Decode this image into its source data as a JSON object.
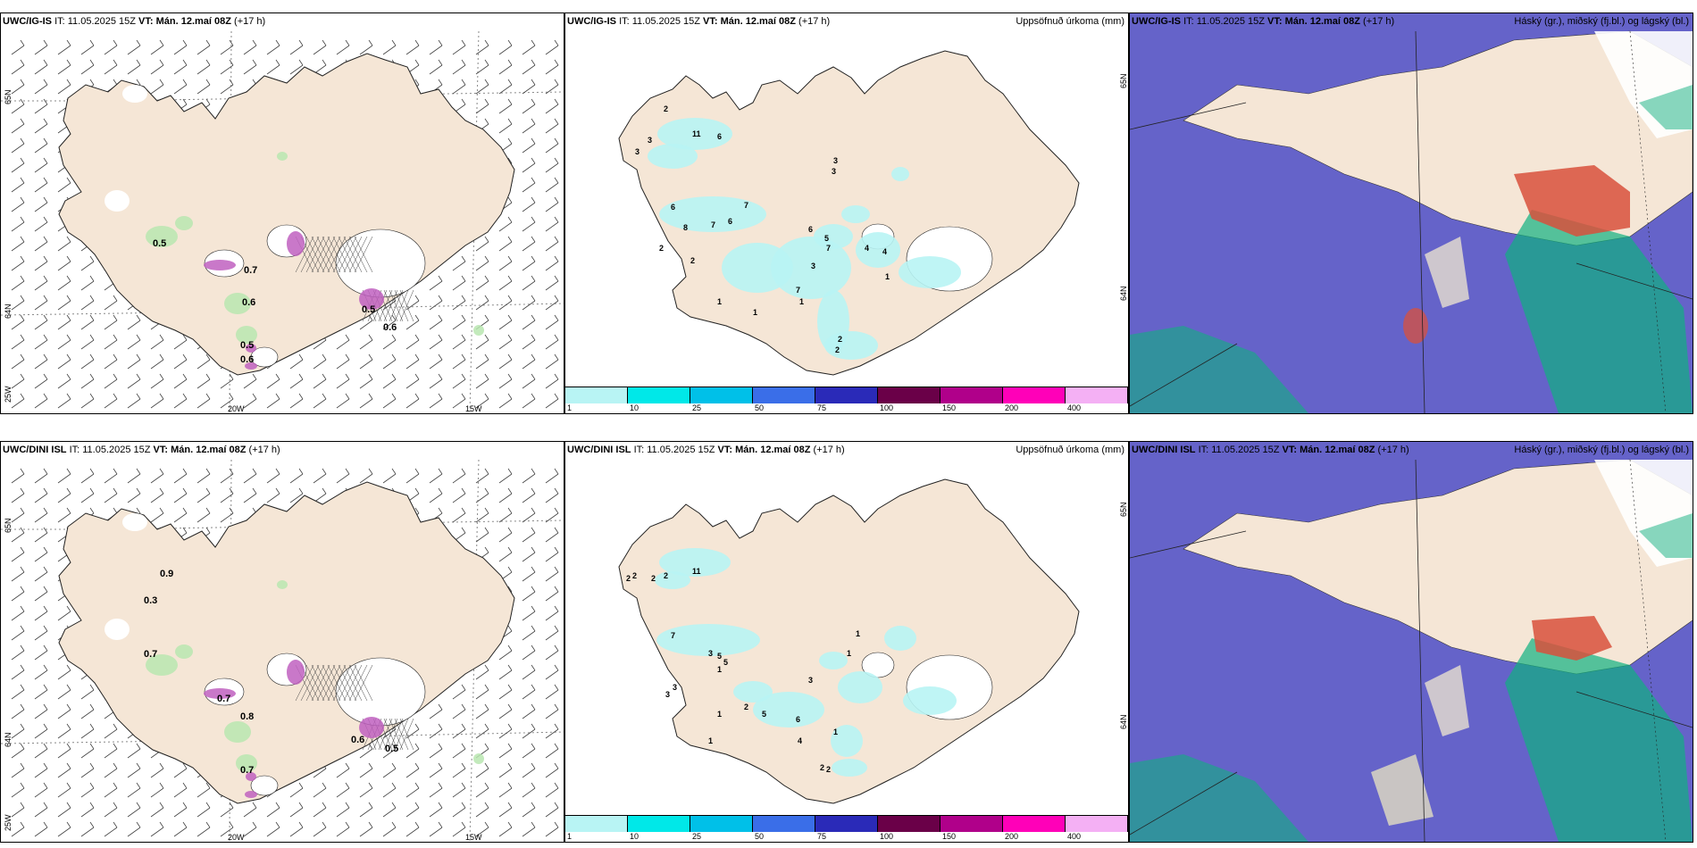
{
  "rows": [
    {
      "model": "UWC/IG-IS",
      "init_label": "IT: 11.05.2025 15Z",
      "valid_label": "VT: Mán. 12.maí 08Z",
      "lead_label": "(+17 h)",
      "wind_values": [
        "0.5",
        "0.7",
        "0.6",
        "0.5",
        "0.6",
        "0.5",
        "0.6"
      ],
      "precip_values": [
        "2",
        "11",
        "6",
        "3",
        "3",
        "6",
        "7",
        "6",
        "7",
        "8",
        "2",
        "2",
        "1",
        "1",
        "1",
        "3",
        "3",
        "6",
        "5",
        "7",
        "3",
        "4",
        "7",
        "4",
        "1",
        "2",
        "2"
      ]
    },
    {
      "model": "UWC/DINI ISL",
      "init_label": "IT: 11.05.2025 15Z",
      "valid_label": "VT: Mán. 12.maí 08Z",
      "lead_label": "(+17 h)",
      "wind_values": [
        "0.9",
        "0.3",
        "0.7",
        "0.7",
        "0.8",
        "0.7",
        "0.6",
        "0.5"
      ],
      "precip_values": [
        "2",
        "2",
        "11",
        "2",
        "2",
        "7",
        "3",
        "5",
        "5",
        "3",
        "1",
        "3",
        "1",
        "1",
        "2",
        "5",
        "6",
        "3",
        "4",
        "1",
        "2",
        "2",
        "1",
        "1"
      ]
    }
  ],
  "precip_title": "Uppsöfnuð úrkoma (mm)",
  "cloud_title": "Háský (gr.), miðský (fj.bl.) og lágský (bl.)",
  "lat_labels": [
    "65N",
    "64N"
  ],
  "lon_labels": [
    "20W",
    "15W",
    "25W"
  ],
  "colorbar": {
    "ticks": [
      "1",
      "10",
      "25",
      "50",
      "75",
      "100",
      "150",
      "200",
      "400"
    ],
    "colors": [
      "#b8f4f4",
      "#00e8e8",
      "#00c0e8",
      "#3a6ee8",
      "#2a2ab8",
      "#6a0048",
      "#b0008a",
      "#ff00b8",
      "#f4b0f4"
    ]
  },
  "colors": {
    "land": "#f5e6d6",
    "cloud_high": "#9a9a9a",
    "cloud_mid": "#10b080",
    "cloud_low": "#4a48c0",
    "cloud_red": "#d8503c"
  }
}
